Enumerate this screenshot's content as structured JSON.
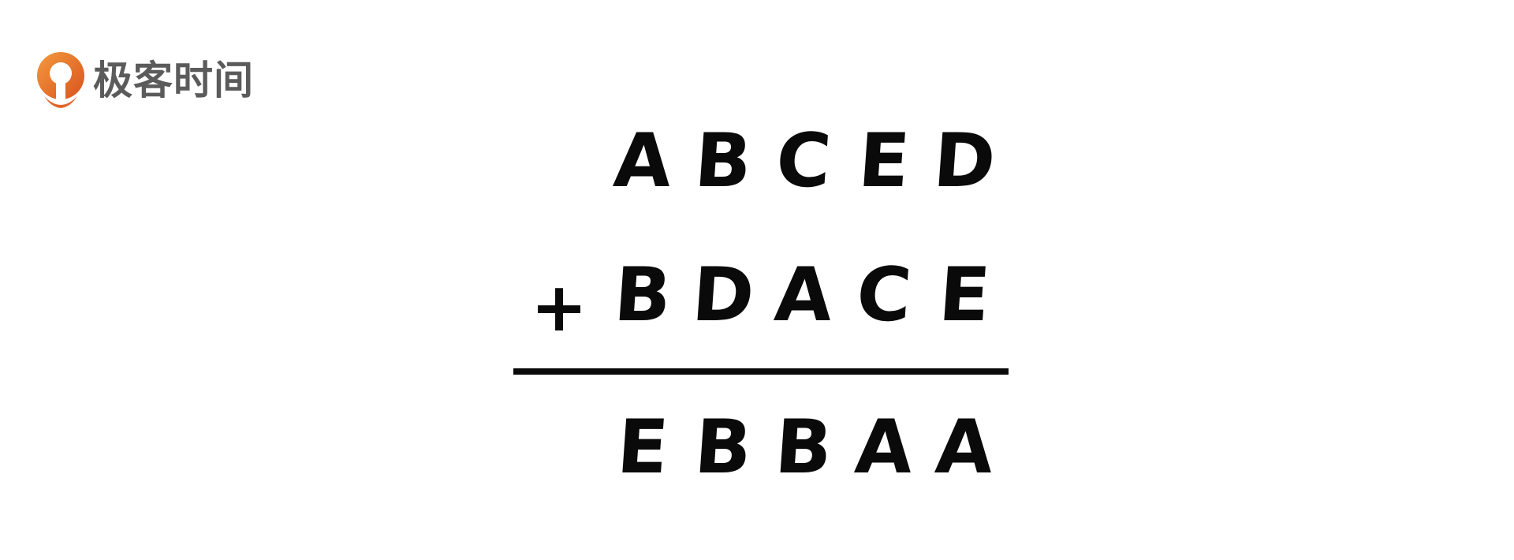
{
  "logo": {
    "text": "极客时间",
    "icon": "geektime-logo-icon",
    "accent_color": "#E8742F"
  },
  "puzzle": {
    "rows": [
      {
        "operator": "",
        "letters": [
          "A",
          "B",
          "C",
          "E",
          "D"
        ]
      },
      {
        "operator": "+",
        "letters": [
          "B",
          "D",
          "A",
          "C",
          "E"
        ]
      }
    ],
    "result": {
      "letters": [
        "E",
        "B",
        "B",
        "A",
        "A"
      ]
    }
  }
}
